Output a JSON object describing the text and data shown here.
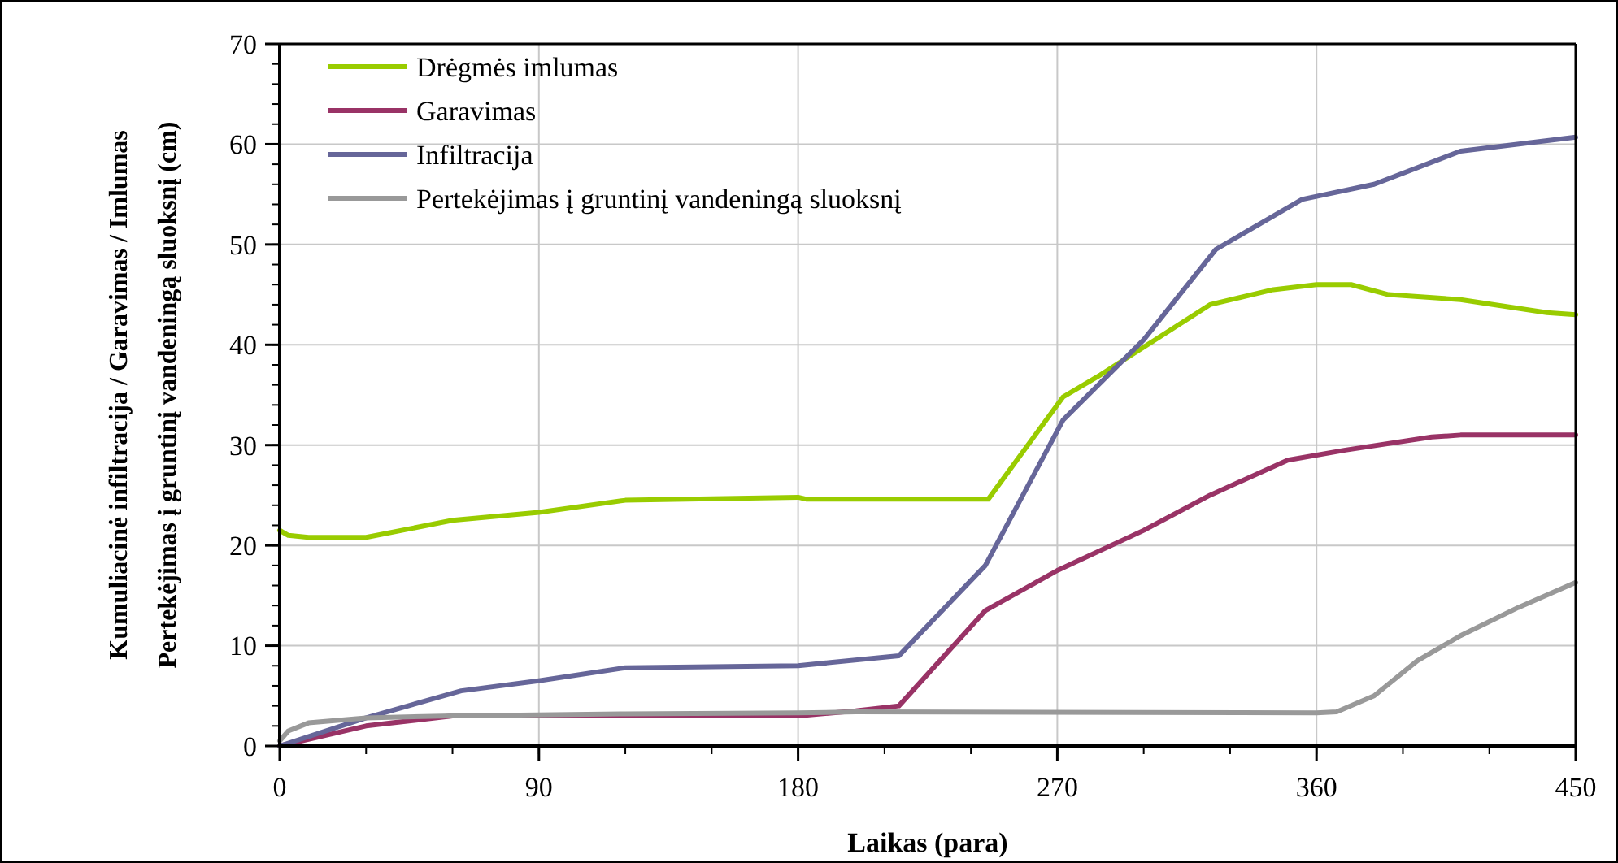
{
  "chart_data": {
    "type": "line",
    "xlabel": "Laikas (para)",
    "ylabel": "Kumuliacinė infiltracija / Garavimas / Imlumas\nPertekėjimas į gruntinį vandeningą sluoksnį (cm)",
    "xlim": [
      0,
      450
    ],
    "xticks": [
      0,
      90,
      180,
      270,
      360,
      450
    ],
    "ylim": [
      0,
      70
    ],
    "yticks": [
      0,
      10,
      20,
      30,
      40,
      50,
      60,
      70
    ],
    "grid": true,
    "legend": "top left",
    "marker": "none",
    "line_style": "solid",
    "series": [
      {
        "name": "Drėgmės imlumas",
        "color": "#99cc00",
        "x": [
          0,
          3,
          10,
          30,
          60,
          90,
          120,
          180,
          183,
          246,
          272,
          285,
          323,
          345,
          360,
          372,
          385,
          410,
          440,
          450
        ],
        "values": [
          21.5,
          21,
          20.8,
          20.8,
          22.5,
          23.3,
          24.5,
          24.8,
          24.6,
          24.6,
          34.8,
          37,
          44,
          45.5,
          46,
          46,
          45,
          44.5,
          43.2,
          43
        ]
      },
      {
        "name": "Garavimas",
        "color": "#993366",
        "x": [
          0,
          30,
          60,
          180,
          200,
          215,
          245,
          270,
          300,
          323,
          350,
          370,
          400,
          410,
          450
        ],
        "values": [
          0,
          2,
          3,
          3,
          3.5,
          4,
          13.5,
          17.5,
          21.5,
          25,
          28.5,
          29.5,
          30.8,
          31,
          31
        ]
      },
      {
        "name": "Infiltracija",
        "color": "#666699",
        "x": [
          0,
          30,
          63,
          90,
          120,
          180,
          215,
          245,
          272,
          300,
          325,
          355,
          380,
          410,
          450
        ],
        "values": [
          0,
          2.8,
          5.5,
          6.5,
          7.8,
          8,
          9,
          18,
          32.5,
          40.5,
          49.5,
          54.5,
          56,
          59.3,
          60.7
        ]
      },
      {
        "name": "Pertekėjimas į gruntinį vandeningą sluoksnį",
        "color": "#999999",
        "x": [
          0,
          3,
          10,
          30,
          60,
          120,
          180,
          200,
          360,
          367,
          380,
          395,
          410,
          430,
          450
        ],
        "values": [
          0.5,
          1.5,
          2.3,
          2.8,
          3,
          3.2,
          3.3,
          3.4,
          3.3,
          3.4,
          5,
          8.5,
          11,
          13.8,
          16.3
        ]
      }
    ]
  }
}
